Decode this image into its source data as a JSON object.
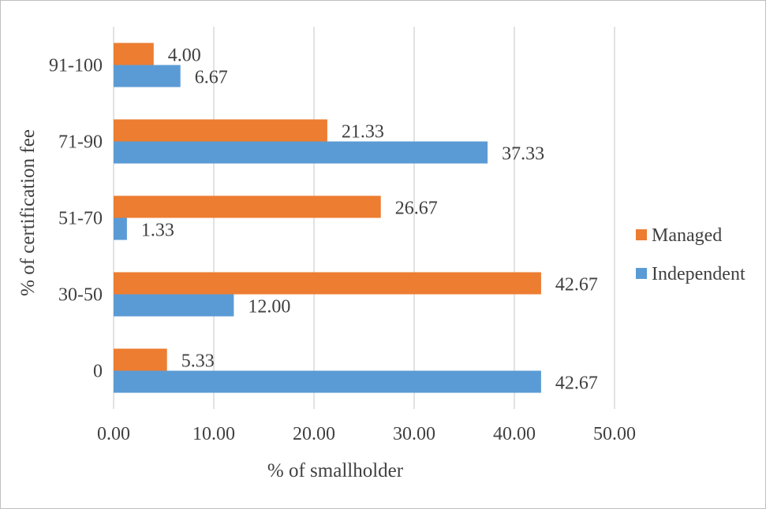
{
  "chart_data": {
    "type": "bar",
    "orientation": "horizontal",
    "categories": [
      "0",
      "30-50",
      "51-70",
      "71-90",
      "91-100"
    ],
    "series": [
      {
        "name": "Managed",
        "color": "#ED7D31",
        "values": [
          5.33,
          42.67,
          26.67,
          21.33,
          4.0
        ],
        "labels": [
          "5.33",
          "42.67",
          "26.67",
          "21.33",
          "4.00"
        ]
      },
      {
        "name": "Independent",
        "color": "#5B9BD5",
        "values": [
          42.67,
          12.0,
          1.33,
          37.33,
          6.67
        ],
        "labels": [
          "42.67",
          "12.00",
          "1.33",
          "37.33",
          "6.67"
        ]
      }
    ],
    "xlim": [
      0,
      50
    ],
    "xticks": [
      0,
      10,
      20,
      30,
      40,
      50
    ],
    "xtick_labels": [
      "0.00",
      "10.00",
      "20.00",
      "30.00",
      "40.00",
      "50.00"
    ],
    "xlabel": "% of smallholder",
    "ylabel": "% of certification fee",
    "grid": "vertical",
    "legend": {
      "position": "right",
      "entries": [
        "Managed",
        "Independent"
      ]
    }
  }
}
